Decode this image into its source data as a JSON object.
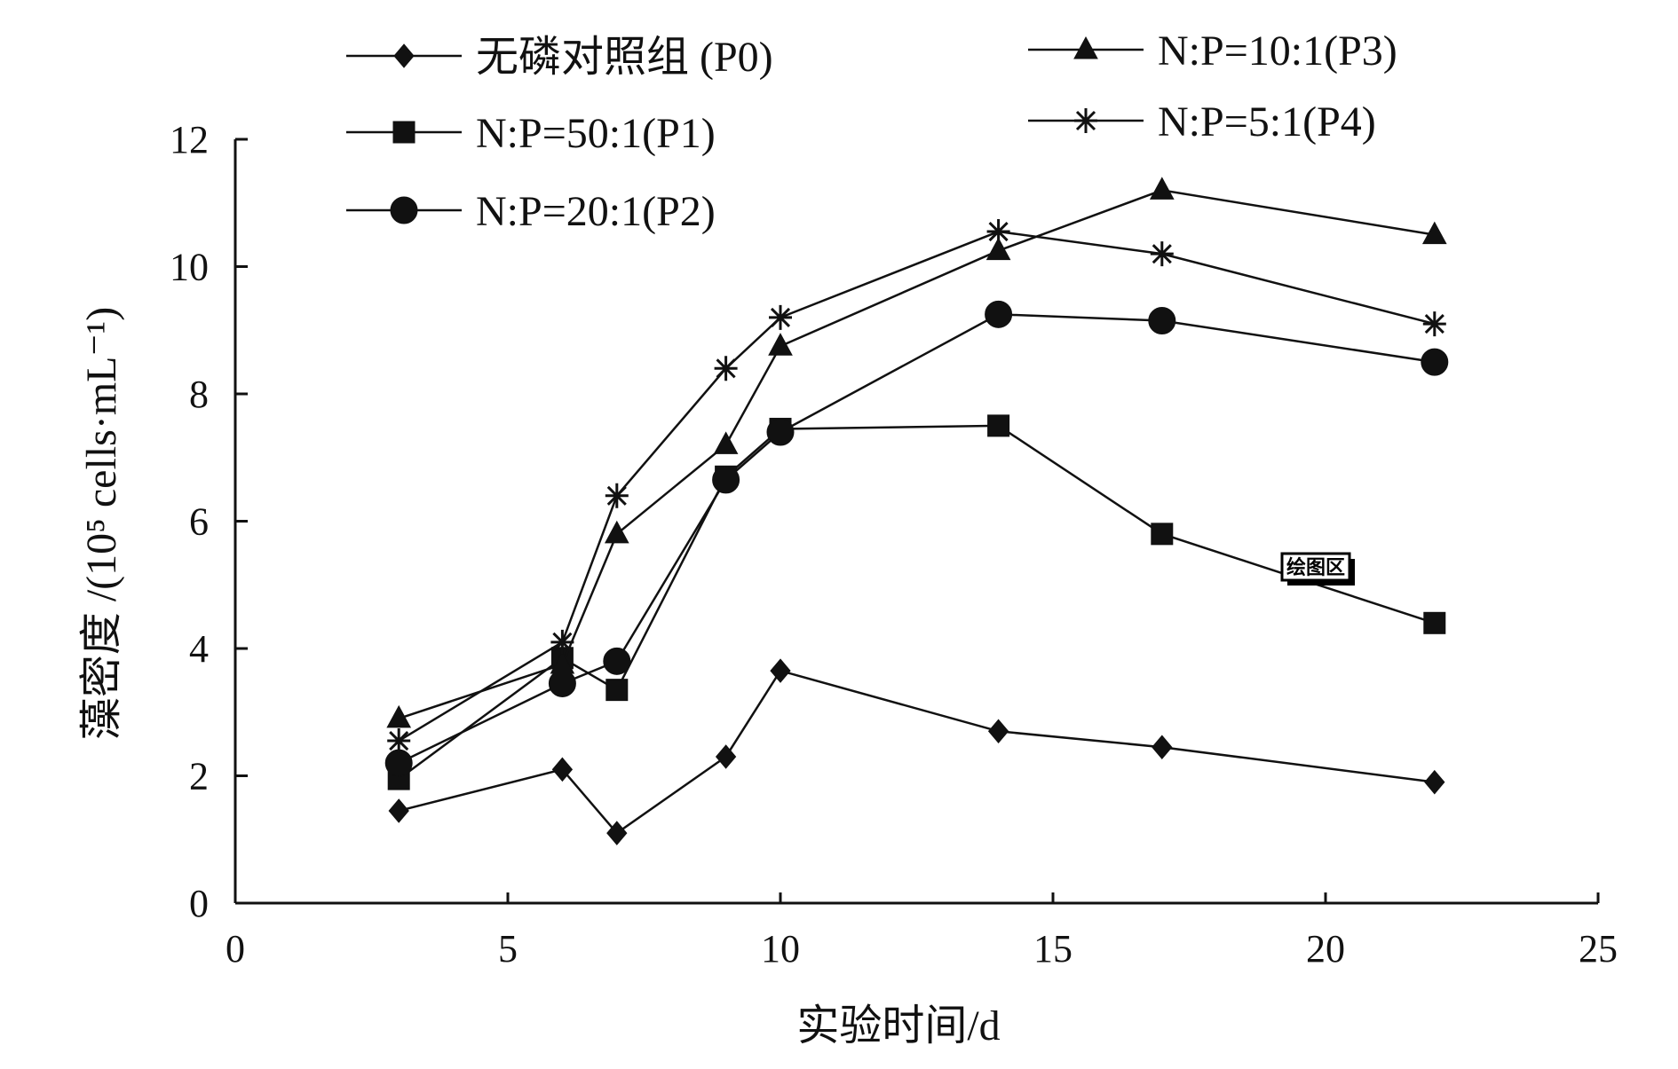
{
  "chart_data": {
    "type": "line",
    "xlabel": "实验时间/d",
    "ylabel": "藻密度 /(10⁵ cells·mL⁻¹)",
    "xlim": [
      0,
      25
    ],
    "ylim": [
      0,
      12
    ],
    "xticks": [
      0,
      5,
      10,
      15,
      20,
      25
    ],
    "yticks": [
      0,
      2,
      4,
      6,
      8,
      10,
      12
    ],
    "grid": false,
    "legend_placement": "top",
    "x": [
      3,
      6,
      7,
      9,
      10,
      14,
      17,
      22
    ],
    "series": [
      {
        "name": "无磷对照组 (P0)",
        "marker": "diamond",
        "values": [
          1.45,
          2.1,
          1.1,
          2.3,
          3.65,
          2.7,
          2.45,
          1.9
        ]
      },
      {
        "name": "N:P=50:1(P1)",
        "marker": "square",
        "values": [
          1.95,
          3.85,
          3.35,
          6.7,
          7.45,
          7.5,
          5.8,
          4.4
        ]
      },
      {
        "name": "N:P=20:1(P2)",
        "marker": "circle",
        "values": [
          2.2,
          3.45,
          3.8,
          6.65,
          7.4,
          9.25,
          9.15,
          8.5
        ]
      },
      {
        "name": "N:P=10:1(P3)",
        "marker": "triangle",
        "values": [
          2.9,
          3.75,
          5.8,
          7.2,
          8.75,
          10.25,
          11.2,
          10.5
        ]
      },
      {
        "name": "N:P=5:1(P4)",
        "marker": "asterisk",
        "values": [
          2.55,
          4.1,
          6.4,
          8.4,
          9.2,
          10.55,
          10.2,
          9.1
        ]
      }
    ],
    "annotation": "绘图区",
    "colors": {
      "line": "#111111",
      "background": "#ffffff"
    }
  }
}
